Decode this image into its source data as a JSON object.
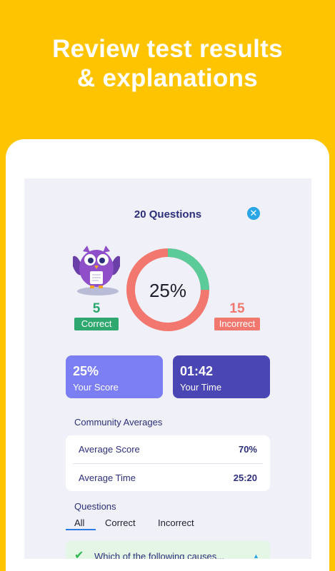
{
  "headline": {
    "line1": "Review test results",
    "line2": "& explanations"
  },
  "results": {
    "title": "20 Questions",
    "percent": "25%",
    "correct_count": "5",
    "correct_label": "Correct",
    "incorrect_count": "15",
    "incorrect_label": "Incorrect",
    "correct_fraction": 0.25
  },
  "cards": {
    "score_value": "25%",
    "score_label": "Your Score",
    "time_value": "01:42",
    "time_label": "Your Time"
  },
  "community": {
    "title": "Community Averages",
    "avg_score_label": "Average Score",
    "avg_score_value": "70%",
    "avg_time_label": "Average Time",
    "avg_time_value": "25:20"
  },
  "questions": {
    "title": "Questions",
    "filters": [
      "All",
      "Correct",
      "Incorrect"
    ],
    "first_item": "Which of the following causes..."
  },
  "colors": {
    "background": "#FFC400",
    "correct": "#5BCB9A",
    "incorrect": "#F2786F",
    "score_card": "#7C7FF4",
    "time_card": "#4A47B5",
    "heading": "#2C2F7A"
  },
  "icons": {
    "close": "close-circle-icon",
    "check": "check-icon",
    "caret": "caret-up-icon",
    "mascot": "owl-mascot"
  }
}
